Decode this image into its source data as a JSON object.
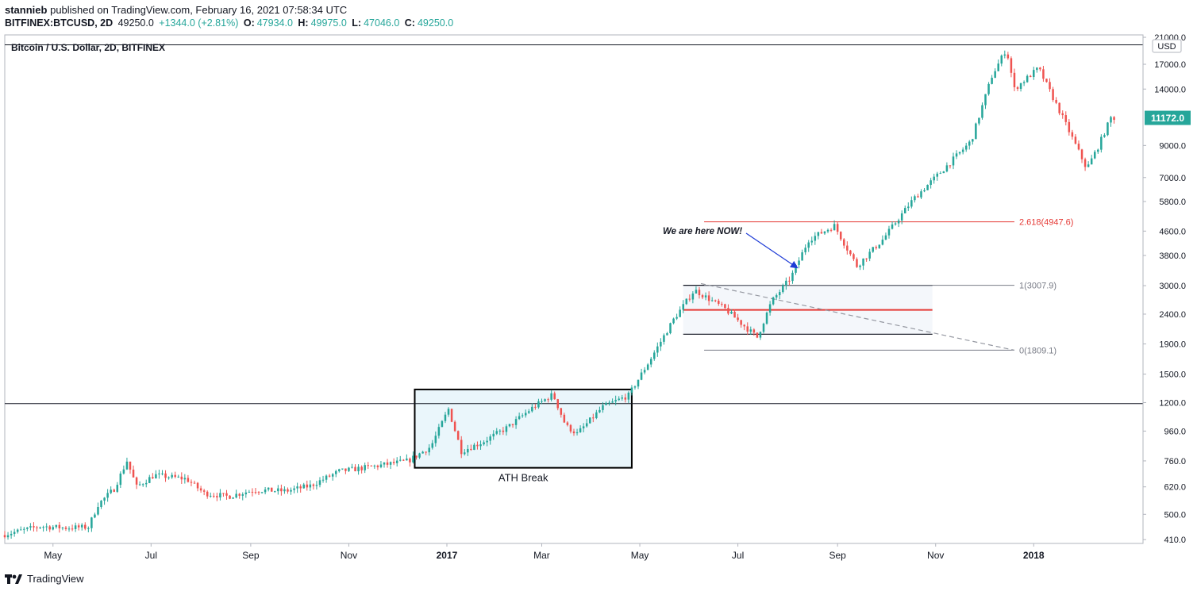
{
  "header": {
    "publisher": "stannieb",
    "published_text": "published on TradingView.com, February 16, 2021 07:58:34 UTC",
    "symbol": "BITFINEX:BTCUSD, 2D",
    "last": "49250.0",
    "change": "+1344.0 (+2.81%)",
    "o_label": "O:",
    "o": "47934.0",
    "h_label": "H:",
    "h": "49975.0",
    "l_label": "L:",
    "l": "47046.0",
    "c_label": "C:",
    "c": "49250.0"
  },
  "chart_title": "Bitcoin / U.S. Dollar, 2D, BITFINEX",
  "footer": {
    "brand": "TradingView"
  },
  "colors": {
    "up": "#26a69a",
    "down": "#ef5350",
    "price_badge": "#26a69a",
    "fib_red": "#e53935",
    "arrow": "#1e3bd6"
  },
  "chart_data": {
    "type": "candlestick",
    "title": "Bitcoin / U.S. Dollar, 2D, BITFINEX",
    "scale": "log",
    "currency": "USD",
    "ylim": [
      400,
      21000
    ],
    "y_ticks": [
      410,
      500,
      620,
      760,
      960,
      1200,
      1500,
      1900,
      2400,
      3000,
      3800,
      4600,
      5800,
      7000,
      9000,
      14000,
      17000,
      21000
    ],
    "y_tick_labels": [
      "410.0",
      "500.0",
      "620.0",
      "760.0",
      "960.0",
      "1200.0",
      "1500.0",
      "1900.0",
      "2400.0",
      "3000.0",
      "3800.0",
      "4600.0",
      "5800.0",
      "7000.0",
      "9000.0",
      "14000.0",
      "17000.0",
      "21000.0"
    ],
    "x_range": [
      "2016-04-01",
      "2018-03-10"
    ],
    "x_ticks": [
      {
        "date": "2016-05-01",
        "label": "May",
        "bold": false
      },
      {
        "date": "2016-07-01",
        "label": "Jul",
        "bold": false
      },
      {
        "date": "2016-09-01",
        "label": "Sep",
        "bold": false
      },
      {
        "date": "2016-11-01",
        "label": "Nov",
        "bold": false
      },
      {
        "date": "2017-01-01",
        "label": "2017",
        "bold": true
      },
      {
        "date": "2017-03-01",
        "label": "Mar",
        "bold": false
      },
      {
        "date": "2017-05-01",
        "label": "May",
        "bold": false
      },
      {
        "date": "2017-07-01",
        "label": "Jul",
        "bold": false
      },
      {
        "date": "2017-09-01",
        "label": "Sep",
        "bold": false
      },
      {
        "date": "2017-11-01",
        "label": "Nov",
        "bold": false
      },
      {
        "date": "2018-01-01",
        "label": "2018",
        "bold": true
      }
    ],
    "current_price": "11172.0",
    "current_price_value": 11172,
    "price_path": [
      [
        "2016-04-01",
        425
      ],
      [
        "2016-04-25",
        455
      ],
      [
        "2016-05-10",
        450
      ],
      [
        "2016-05-25",
        452
      ],
      [
        "2016-05-31",
        540
      ],
      [
        "2016-06-10",
        610
      ],
      [
        "2016-06-18",
        760
      ],
      [
        "2016-06-24",
        620
      ],
      [
        "2016-07-05",
        680
      ],
      [
        "2016-07-25",
        660
      ],
      [
        "2016-08-05",
        590
      ],
      [
        "2016-08-20",
        575
      ],
      [
        "2016-09-05",
        605
      ],
      [
        "2016-09-25",
        600
      ],
      [
        "2016-10-10",
        625
      ],
      [
        "2016-10-28",
        700
      ],
      [
        "2016-11-20",
        730
      ],
      [
        "2016-12-10",
        760
      ],
      [
        "2016-12-24",
        850
      ],
      [
        "2017-01-04",
        1140
      ],
      [
        "2017-01-12",
        820
      ],
      [
        "2017-01-25",
        880
      ],
      [
        "2017-02-10",
        990
      ],
      [
        "2017-02-25",
        1150
      ],
      [
        "2017-03-10",
        1280
      ],
      [
        "2017-03-18",
        1000
      ],
      [
        "2017-03-25",
        940
      ],
      [
        "2017-04-10",
        1160
      ],
      [
        "2017-04-26",
        1270
      ],
      [
        "2017-05-10",
        1700
      ],
      [
        "2017-05-24",
        2300
      ],
      [
        "2017-06-06",
        2900
      ],
      [
        "2017-06-25",
        2500
      ],
      [
        "2017-07-15",
        2000
      ],
      [
        "2017-07-24",
        2650
      ],
      [
        "2017-08-05",
        3200
      ],
      [
        "2017-08-16",
        4300
      ],
      [
        "2017-09-01",
        4800
      ],
      [
        "2017-09-15",
        3500
      ],
      [
        "2017-10-01",
        4300
      ],
      [
        "2017-10-20",
        5900
      ],
      [
        "2017-11-05",
        7200
      ],
      [
        "2017-11-25",
        9300
      ],
      [
        "2017-12-08",
        15500
      ],
      [
        "2017-12-17",
        19200
      ],
      [
        "2017-12-22",
        14000
      ],
      [
        "2018-01-06",
        16500
      ],
      [
        "2018-01-20",
        11500
      ],
      [
        "2018-02-05",
        7500
      ],
      [
        "2018-02-12",
        8900
      ],
      [
        "2018-02-20",
        11172
      ]
    ],
    "horizontal_lines": [
      {
        "label": "",
        "value": 19800,
        "color": "#131722"
      },
      {
        "label": "",
        "value": 1190,
        "color": "#131722"
      }
    ],
    "fibonacci": [
      {
        "label": "2.618(4947.6)",
        "value": 4947.6,
        "color": "#e53935"
      },
      {
        "label": "1(3007.9)",
        "value": 3007.9,
        "color": "#787b86"
      },
      {
        "label": "0(1809.1)",
        "value": 1809.1,
        "color": "#787b86"
      }
    ],
    "annotations": [
      {
        "text": "We are here NOW!",
        "target": [
          "2017-08-07",
          3450
        ]
      },
      {
        "text": "ATH Break",
        "box": {
          "x0": "2016-12-12",
          "x1": "2017-04-26",
          "y0": 720,
          "y1": 1330
        }
      }
    ]
  }
}
